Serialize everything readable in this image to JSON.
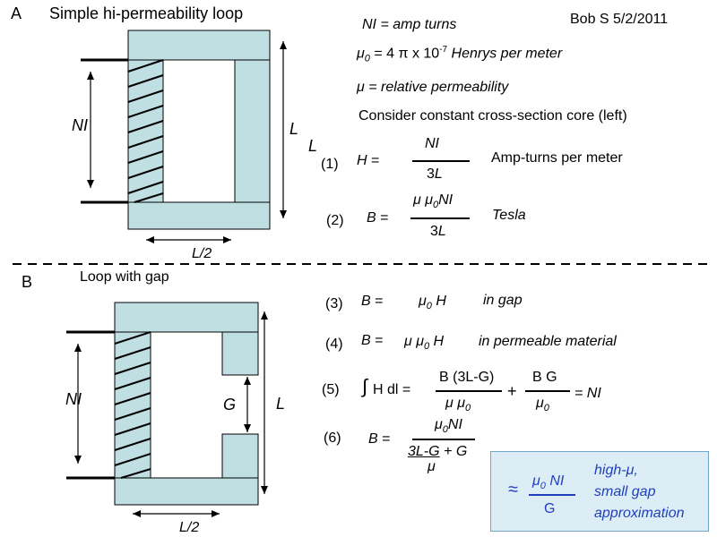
{
  "header": {
    "section_a_letter": "A",
    "section_a_title": "Simple hi-permeability loop",
    "author": "Bob S 5/2/2011"
  },
  "definitions": {
    "ni_prefix": "NI",
    "ni_text": " = amp turns",
    "mu0_sym": "μ",
    "mu0_sub": "0",
    "mu0_text": " = 4 π x 10",
    "mu0_exp": "-7",
    "mu0_unit": " Henrys per meter",
    "mu_text": "μ = relative permeability",
    "consider": "Consider constant cross-section core (left)"
  },
  "eq1": {
    "num": "(1)",
    "lhs": "H =",
    "numerator": "NI",
    "den_a": "3",
    "den_b": "L",
    "desc": "Amp-turns per meter"
  },
  "eq2": {
    "num": "(2)",
    "lhs": "B =",
    "numerator": "μ μ",
    "numerator_sub": "0",
    "numerator_tail": "NI",
    "den_a": "3",
    "den_b": "L",
    "desc": "Tesla"
  },
  "diagram_a": {
    "ni_label": "NI",
    "l_label_1": "L",
    "l_label_2": "L",
    "half_label": "L/2"
  },
  "section_b": {
    "letter": "B",
    "title": "Loop with gap"
  },
  "diagram_b": {
    "ni_label": "NI",
    "g_label": "G",
    "l_label": "L",
    "half_label": "L/2"
  },
  "eq3": {
    "num": "(3)",
    "lhs": "B =",
    "rhs_mu": "μ",
    "rhs_sub": "0",
    "rhs_h": " H",
    "desc": "in gap"
  },
  "eq4": {
    "num": "(4)",
    "lhs": "B =",
    "rhs_mu": "μ μ",
    "rhs_sub": "0",
    "rhs_h": " H",
    "desc": "in permeable material"
  },
  "eq5": {
    "num": "(5)",
    "integral": "∫",
    "lhs": "H dl =",
    "frac1_num": "B (3L-G)",
    "frac1_den_mu": "μ  μ",
    "frac1_den_sub": "0",
    "plus": "+",
    "frac2_num": "B G",
    "frac2_den_mu": "μ",
    "frac2_den_sub": "0",
    "rhs": "= NI"
  },
  "eq6": {
    "num": "(6)",
    "lhs": "B =",
    "num_mu": "μ",
    "num_sub": "0",
    "num_tail": "NI",
    "den_top": "3L-G",
    "den_plus": " + G",
    "den_mu": "μ"
  },
  "approximation": {
    "approx_symbol": "≈",
    "num_mu": "μ",
    "num_sub": "0",
    "num_tail": " NI",
    "den": "G",
    "line1": "high-μ,",
    "line2": "small gap",
    "line3": "approximation"
  }
}
